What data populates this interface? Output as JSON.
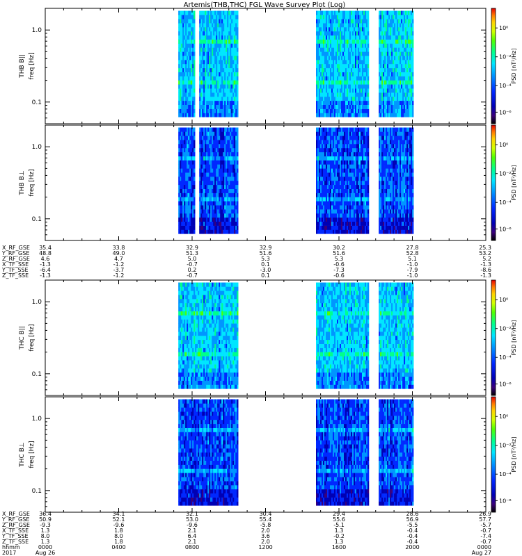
{
  "title": "Artemis(THB,THC) FGL Wave Survey Plot (Log)",
  "colorbar_label": "PSD [nT²/Hz]",
  "colorbar_ticks": [
    "10⁰",
    "10⁻²",
    "10⁻⁴",
    "10⁻⁶"
  ],
  "colormap": [
    "#000000",
    "#3a007a",
    "#0000b4",
    "#0028ff",
    "#0096ff",
    "#00e6ff",
    "#00ff8c",
    "#50ff00",
    "#d2ff00",
    "#ffd200",
    "#ff7800",
    "#e60000"
  ],
  "panels": [
    {
      "probe": "THB",
      "component": "B||",
      "ylabel_probe": "THB B||",
      "ylabel_freq": "freq [Hz]",
      "yticks": [
        "1.0",
        "0.1"
      ]
    },
    {
      "probe": "THB",
      "component": "B⊥",
      "ylabel_probe": "THB B⊥",
      "ylabel_freq": "freq [Hz]",
      "yticks": [
        "1.0",
        "0.1"
      ]
    },
    {
      "probe": "THC",
      "component": "B||",
      "ylabel_probe": "THC B||",
      "ylabel_freq": "freq [Hz]",
      "yticks": [
        "1.0",
        "0.1"
      ]
    },
    {
      "probe": "THC",
      "component": "B⊥",
      "ylabel_probe": "THC B⊥",
      "ylabel_freq": "freq [Hz]",
      "yticks": [
        "1.0",
        "0.1"
      ]
    }
  ],
  "chart_data": {
    "type": "heatmap",
    "title": "Artemis(THB,THC) FGL Wave Survey Plot (Log)",
    "y_scale": "log",
    "y_range_hz": [
      0.05,
      2.0
    ],
    "color_scale": "log",
    "color_range": [
      "1e-7",
      "1e1"
    ],
    "x_range": [
      "2017 Aug 26 0000",
      "2017 Aug 27 0000"
    ],
    "data_intervals_hhmm": [
      [
        "0715",
        "1030"
      ],
      [
        "1445",
        "1735"
      ],
      [
        "1810",
        "2000"
      ]
    ],
    "data_gaps_hhmm": [
      "0815"
    ],
    "panel_order": [
      "THB B||",
      "THB B⊥",
      "THC B||",
      "THC B⊥"
    ]
  },
  "thb_ephem": {
    "labels": [
      "X_RF_GSE",
      "Y_RF_GSE",
      "Z_RF_GSE",
      "X_TF_SSE",
      "Y_TF_SSE",
      "Z_TF_SSE"
    ],
    "columns": [
      [
        "35.4",
        "48.8",
        "4.6",
        "-1.3",
        "-6.4",
        "-1.3"
      ],
      [
        "33.8",
        "49.0",
        "4.7",
        "-1.2",
        "-3.7",
        "-1.2"
      ],
      [
        "32.9",
        "51.3",
        "5.0",
        "-0.7",
        "0.2",
        "-0.7"
      ],
      [
        "32.9",
        "51.6",
        "5.3",
        "0.1",
        "-3.0",
        "0.1"
      ],
      [
        "30.2",
        "51.6",
        "5.3",
        "-0.6",
        "-7.3",
        "-0.6"
      ],
      [
        "27.8",
        "52.8",
        "5.1",
        "-1.0",
        "-7.9",
        "-1.0"
      ],
      [
        "25.3",
        "53.2",
        "5.2",
        "-1.3",
        "-8.6",
        "-1.3"
      ]
    ]
  },
  "thc_ephem": {
    "labels": [
      "X_RF_GSE",
      "Y_RF_GSE",
      "Z_RF_GSE",
      "X_TF_SSE",
      "Y_TF_SSE",
      "Z_TF_SSE"
    ],
    "columns": [
      [
        "36.4",
        "50.9",
        "-9.3",
        "1.3",
        "8.0",
        "1.3"
      ],
      [
        "34.1",
        "52.1",
        "-9.6",
        "1.8",
        "8.0",
        "1.8"
      ],
      [
        "32.1",
        "53.0",
        "-9.6",
        "2.1",
        "6.4",
        "2.1"
      ],
      [
        "30.4",
        "55.4",
        "-5.8",
        "2.0",
        "3.6",
        "2.0"
      ],
      [
        "29.4",
        "55.6",
        "-5.1",
        "1.3",
        "-0.2",
        "1.3"
      ],
      [
        "28.6",
        "56.9",
        "-5.5",
        "-0.4",
        "-0.4",
        "-0.4"
      ],
      [
        "26.9",
        "57.7",
        "-5.7",
        "-0.7",
        "-7.4",
        "-0.7"
      ]
    ]
  },
  "time_axis": {
    "row_label": "hhmm",
    "year_label": "2017",
    "hhmm": [
      "0000",
      "0400",
      "0800",
      "1200",
      "1600",
      "2000",
      "0000"
    ],
    "start_date": "Aug 26",
    "end_date": "Aug 27"
  }
}
